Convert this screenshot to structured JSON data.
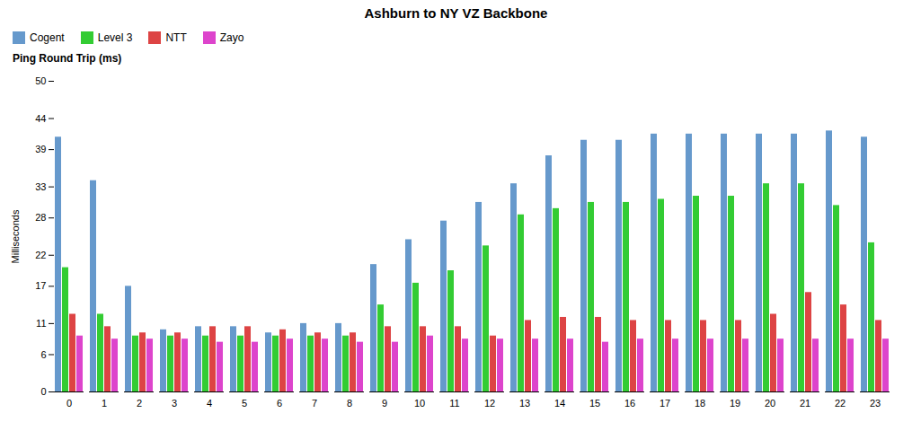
{
  "chart_data": {
    "type": "bar",
    "title": "Ashburn to NY VZ Backbone",
    "subtitle": "Ping Round Trip (ms)",
    "ylabel": "Milliseconds",
    "categories": [
      "0",
      "1",
      "2",
      "3",
      "4",
      "5",
      "6",
      "7",
      "8",
      "9",
      "10",
      "11",
      "12",
      "13",
      "14",
      "15",
      "16",
      "17",
      "18",
      "19",
      "20",
      "21",
      "22",
      "23"
    ],
    "series": [
      {
        "name": "Cogent",
        "color": "#6699cc",
        "values": [
          41.0,
          34.0,
          17.0,
          10.0,
          10.5,
          10.5,
          9.5,
          11.0,
          11.0,
          20.5,
          24.5,
          27.5,
          30.5,
          33.5,
          38.0,
          40.5,
          40.5,
          41.5,
          41.5,
          41.5,
          41.5,
          41.5,
          42.0,
          41.0
        ]
      },
      {
        "name": "Level 3",
        "color": "#33cc33",
        "values": [
          20.0,
          12.5,
          9.0,
          9.0,
          9.0,
          9.0,
          9.0,
          9.0,
          9.0,
          14.0,
          17.5,
          19.5,
          23.5,
          28.5,
          29.5,
          30.5,
          30.5,
          31.0,
          31.5,
          31.5,
          33.5,
          33.5,
          30.0,
          24.0
        ]
      },
      {
        "name": "NTT",
        "color": "#dd4444",
        "values": [
          12.5,
          10.5,
          9.5,
          9.5,
          10.5,
          10.5,
          10.0,
          9.5,
          9.5,
          10.5,
          10.5,
          10.5,
          9.0,
          11.5,
          12.0,
          12.0,
          11.5,
          11.5,
          11.5,
          11.5,
          12.5,
          16.0,
          14.0,
          11.5
        ]
      },
      {
        "name": "Zayo",
        "color": "#dd44cc",
        "values": [
          9.0,
          8.5,
          8.5,
          8.5,
          8.0,
          8.0,
          8.5,
          8.5,
          8.0,
          8.0,
          9.0,
          8.5,
          8.5,
          8.5,
          8.5,
          8.0,
          8.5,
          8.5,
          8.5,
          8.5,
          8.5,
          8.5,
          8.5,
          8.5
        ]
      }
    ],
    "ylim": [
      0,
      50
    ],
    "yticks": [
      0,
      6,
      11,
      17,
      22,
      28,
      33,
      39,
      44,
      50
    ],
    "grid": false,
    "legend": "top"
  }
}
